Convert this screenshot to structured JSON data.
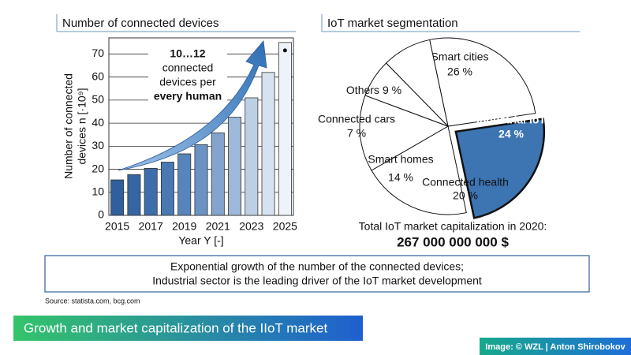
{
  "chart_data": [
    {
      "type": "bar",
      "title": "Number of connected devices",
      "categories": [
        "2015",
        null,
        "2017",
        null,
        "2019",
        null,
        "2021",
        null,
        "2023",
        null,
        "2025"
      ],
      "values": [
        15.4,
        17.7,
        20.4,
        23.1,
        26.7,
        30.7,
        35.8,
        42.6,
        51,
        62,
        75
      ],
      "colors": [
        "#2f5f9c",
        "#3566a3",
        "#3d6eab",
        "#4a78b2",
        "#5784ba",
        "#6a93c3",
        "#83a5cd",
        "#9db8d8",
        "#bccfe4",
        "#d6e2ef",
        "#eef3f9"
      ],
      "ylim": [
        0,
        77
      ],
      "yticks": [
        0,
        10,
        20,
        30,
        40,
        50,
        60,
        70
      ],
      "grid": true,
      "x_label": "Year Y [-]",
      "y_label": [
        "Number of connected",
        "devices n [·10⁹]"
      ],
      "annotation": [
        "10…12",
        "connected",
        "devices per",
        "every human"
      ]
    },
    {
      "type": "pie",
      "title": "IoT market segmentation",
      "categories": [
        "Smart cities",
        "Industrial IoT",
        "Connected health",
        "Smart homes",
        "Connected cars",
        "Others"
      ],
      "values": [
        26,
        24,
        20,
        14,
        7,
        9
      ],
      "value_labels": [
        "26 %",
        "24 %",
        "20 %",
        "14 %",
        "7 %",
        "9 %"
      ],
      "colors": [
        "#ffffff",
        "#3d74b2",
        "#ffffff",
        "#ffffff",
        "#ffffff",
        "#ffffff"
      ],
      "exploded": "Industrial IoT"
    }
  ],
  "total_caption": "Total IoT market capitalization in 2020:",
  "total_value": "267 000 000 000 $",
  "summary": [
    "Exponential growth of the number of the connected devices;",
    "Industrial sector is the leading driver of the IoT market development"
  ],
  "source": "Source: statista.com, bcg.com",
  "banner": "Growth and market capitalization of the IIoT market",
  "credit": "Image: © WZL | Anton Shirobokov"
}
